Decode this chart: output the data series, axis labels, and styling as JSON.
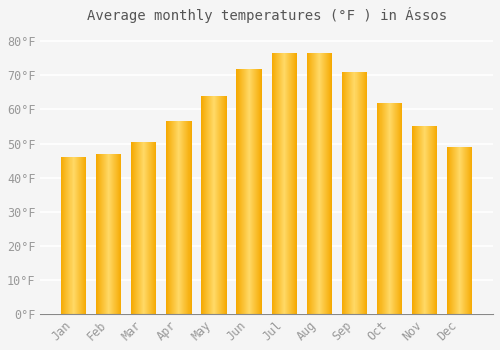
{
  "title": "Average monthly temperatures (°F ) in Ássos",
  "months": [
    "Jan",
    "Feb",
    "Mar",
    "Apr",
    "May",
    "Jun",
    "Jul",
    "Aug",
    "Sep",
    "Oct",
    "Nov",
    "Dec"
  ],
  "values": [
    46,
    47,
    50.5,
    56.5,
    64,
    72,
    76.5,
    76.5,
    71,
    62,
    55,
    49
  ],
  "bar_color_center": "#FFD966",
  "bar_color_edge": "#F5A800",
  "yticks": [
    0,
    10,
    20,
    30,
    40,
    50,
    60,
    70,
    80
  ],
  "ytick_labels": [
    "0°F",
    "10°F",
    "20°F",
    "30°F",
    "40°F",
    "50°F",
    "60°F",
    "70°F",
    "80°F"
  ],
  "ylim": [
    0,
    83
  ],
  "background_color": "#f5f5f5",
  "grid_color": "#ffffff",
  "tick_label_color": "#999999",
  "title_color": "#555555",
  "title_fontsize": 10,
  "tick_fontsize": 8.5
}
